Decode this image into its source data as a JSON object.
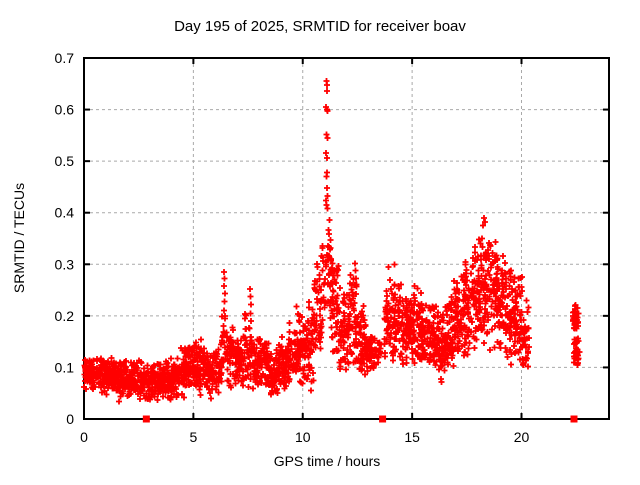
{
  "chart_data": {
    "type": "scatter",
    "title": "Day 195 of 2025, SRMTID for receiver boav",
    "xlabel": "GPS time / hours",
    "ylabel": "SRMTID / TECUs",
    "xlim": [
      0,
      24
    ],
    "ylim": [
      0,
      0.7
    ],
    "xticks": [
      0,
      5,
      10,
      15,
      20
    ],
    "yticks": [
      0,
      0.1,
      0.2,
      0.3,
      0.4,
      0.5,
      0.6,
      0.7
    ],
    "grid": {
      "show": true,
      "style": "dashed",
      "color": "#a9a9a9"
    },
    "colors": {
      "marker": "#ff0000",
      "axis": "#000000",
      "background": "#ffffff"
    },
    "marker": {
      "shape": "plus",
      "size": 7,
      "stroke_width": 1.8
    },
    "legend": "none",
    "seed": 195,
    "series": [
      {
        "name": "srmtid",
        "marker": "plus",
        "color": "#ff0000",
        "density_bins_columns": [
          "t_start",
          "t_end",
          "count",
          "y_min",
          "y_max"
        ],
        "density_bins": [
          [
            0.0,
            0.3,
            45,
            0.055,
            0.125
          ],
          [
            0.3,
            0.7,
            55,
            0.05,
            0.12
          ],
          [
            0.7,
            1.1,
            55,
            0.045,
            0.12
          ],
          [
            1.1,
            1.5,
            55,
            0.04,
            0.125
          ],
          [
            1.5,
            1.9,
            55,
            0.03,
            0.115
          ],
          [
            1.9,
            2.3,
            55,
            0.035,
            0.12
          ],
          [
            2.3,
            2.7,
            50,
            0.03,
            0.115
          ],
          [
            2.7,
            3.1,
            50,
            0.03,
            0.11
          ],
          [
            3.1,
            3.5,
            55,
            0.035,
            0.115
          ],
          [
            3.5,
            3.9,
            55,
            0.03,
            0.12
          ],
          [
            3.9,
            4.3,
            55,
            0.03,
            0.125
          ],
          [
            4.3,
            4.7,
            55,
            0.035,
            0.14
          ],
          [
            4.7,
            5.1,
            55,
            0.04,
            0.155
          ],
          [
            5.1,
            5.5,
            55,
            0.04,
            0.16
          ],
          [
            5.5,
            5.9,
            55,
            0.035,
            0.14
          ],
          [
            5.9,
            6.3,
            45,
            0.04,
            0.15
          ],
          [
            6.3,
            6.5,
            18,
            0.08,
            0.235
          ],
          [
            6.5,
            6.9,
            45,
            0.05,
            0.19
          ],
          [
            6.9,
            7.3,
            55,
            0.05,
            0.18
          ],
          [
            7.3,
            7.7,
            50,
            0.06,
            0.21
          ],
          [
            7.7,
            8.1,
            55,
            0.05,
            0.17
          ],
          [
            8.1,
            8.5,
            55,
            0.05,
            0.16
          ],
          [
            8.5,
            8.9,
            55,
            0.04,
            0.135
          ],
          [
            8.9,
            9.3,
            55,
            0.05,
            0.16
          ],
          [
            9.3,
            9.7,
            55,
            0.055,
            0.19
          ],
          [
            9.7,
            10.1,
            55,
            0.06,
            0.22
          ],
          [
            10.1,
            10.5,
            50,
            0.04,
            0.25
          ],
          [
            10.5,
            10.85,
            45,
            0.1,
            0.33
          ],
          [
            10.85,
            11.3,
            50,
            0.15,
            0.46
          ],
          [
            11.3,
            11.7,
            50,
            0.1,
            0.33
          ],
          [
            11.7,
            12.1,
            55,
            0.08,
            0.26
          ],
          [
            12.1,
            12.5,
            55,
            0.085,
            0.3
          ],
          [
            12.5,
            12.9,
            55,
            0.07,
            0.24
          ],
          [
            12.9,
            13.3,
            45,
            0.08,
            0.185
          ],
          [
            13.3,
            13.62,
            20,
            0.09,
            0.16
          ],
          [
            13.7,
            14.1,
            45,
            0.11,
            0.285
          ],
          [
            14.1,
            14.5,
            55,
            0.1,
            0.27
          ],
          [
            14.5,
            14.9,
            55,
            0.1,
            0.25
          ],
          [
            14.9,
            15.3,
            55,
            0.095,
            0.26
          ],
          [
            15.3,
            15.7,
            55,
            0.09,
            0.25
          ],
          [
            15.7,
            16.1,
            55,
            0.075,
            0.235
          ],
          [
            16.1,
            16.5,
            55,
            0.06,
            0.22
          ],
          [
            16.5,
            16.9,
            55,
            0.08,
            0.25
          ],
          [
            16.9,
            17.3,
            55,
            0.1,
            0.28
          ],
          [
            17.3,
            17.7,
            55,
            0.11,
            0.32
          ],
          [
            17.7,
            18.1,
            60,
            0.12,
            0.36
          ],
          [
            18.1,
            18.5,
            60,
            0.13,
            0.385
          ],
          [
            18.5,
            18.9,
            60,
            0.12,
            0.37
          ],
          [
            18.9,
            19.3,
            55,
            0.105,
            0.33
          ],
          [
            19.3,
            19.7,
            55,
            0.1,
            0.3
          ],
          [
            19.7,
            20.05,
            50,
            0.095,
            0.285
          ],
          [
            20.05,
            20.35,
            35,
            0.08,
            0.24
          ],
          [
            22.35,
            22.6,
            40,
            0.165,
            0.23
          ],
          [
            22.4,
            22.65,
            35,
            0.1,
            0.16
          ]
        ],
        "extra_points": [
          [
            11.08,
            0.655
          ],
          [
            11.11,
            0.648
          ],
          [
            11.1,
            0.636
          ],
          [
            11.06,
            0.605
          ],
          [
            11.1,
            0.6
          ],
          [
            11.13,
            0.597
          ],
          [
            11.09,
            0.552
          ],
          [
            11.12,
            0.545
          ],
          [
            11.07,
            0.516
          ],
          [
            11.1,
            0.506
          ],
          [
            11.11,
            0.478
          ],
          [
            11.08,
            0.47
          ],
          [
            11.1,
            0.448
          ],
          [
            11.12,
            0.432
          ],
          [
            11.06,
            0.424
          ],
          [
            11.09,
            0.415
          ],
          [
            11.13,
            0.408
          ],
          [
            6.4,
            0.285
          ],
          [
            6.43,
            0.272
          ],
          [
            6.41,
            0.258
          ],
          [
            6.44,
            0.243
          ],
          [
            6.42,
            0.228
          ],
          [
            6.4,
            0.21
          ],
          [
            6.45,
            0.195
          ],
          [
            7.58,
            0.252
          ],
          [
            7.61,
            0.238
          ],
          [
            7.63,
            0.222
          ],
          [
            7.6,
            0.205
          ],
          [
            7.64,
            0.19
          ],
          [
            12.38,
            0.302
          ],
          [
            12.41,
            0.288
          ],
          [
            12.44,
            0.272
          ],
          [
            12.4,
            0.26
          ],
          [
            14.2,
            0.3
          ],
          [
            13.92,
            0.295
          ],
          [
            16.32,
            0.078
          ],
          [
            16.35,
            0.072
          ],
          [
            18.28,
            0.39
          ],
          [
            18.32,
            0.382
          ],
          [
            18.25,
            0.375
          ]
        ]
      },
      {
        "name": "flags",
        "marker": "filled-square",
        "color": "#ff0000",
        "size": 7,
        "points": [
          [
            2.85,
            0
          ],
          [
            13.65,
            0
          ],
          [
            22.4,
            0
          ]
        ]
      }
    ]
  }
}
